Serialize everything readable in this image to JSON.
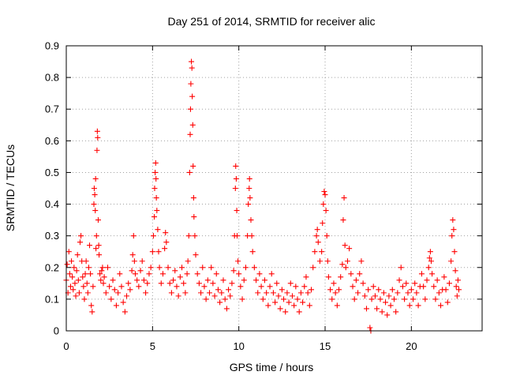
{
  "chart_data": {
    "type": "scatter",
    "title": "Day 251 of 2014, SRMTID for receiver alic",
    "xlabel": "GPS time / hours",
    "ylabel": "SRMTID / TECUs",
    "xlim": [
      0,
      24.1
    ],
    "ylim": [
      0,
      0.9
    ],
    "x_ticks": [
      0,
      5,
      10,
      15,
      20
    ],
    "y_ticks": [
      0,
      0.1,
      0.2,
      0.3,
      0.4,
      0.5,
      0.6,
      0.7,
      0.8,
      0.9
    ],
    "x_tick_labels": [
      "0",
      "5",
      "10",
      "15",
      "20"
    ],
    "y_tick_labels": [
      "0",
      "0.1",
      "0.2",
      "0.3",
      "0.4",
      "0.5",
      "0.6",
      "0.7",
      "0.8",
      "0.9"
    ],
    "grid": true,
    "marker": "+",
    "series": [
      {
        "name": "SRMTID",
        "color": "#ff0000",
        "points": [
          [
            0.0,
            0.16
          ],
          [
            0.05,
            0.21
          ],
          [
            0.1,
            0.12
          ],
          [
            0.15,
            0.25
          ],
          [
            0.2,
            0.18
          ],
          [
            0.25,
            0.14
          ],
          [
            0.3,
            0.22
          ],
          [
            0.35,
            0.17
          ],
          [
            0.4,
            0.13
          ],
          [
            0.45,
            0.2
          ],
          [
            0.5,
            0.15
          ],
          [
            0.55,
            0.11
          ],
          [
            0.6,
            0.19
          ],
          [
            0.65,
            0.24
          ],
          [
            0.7,
            0.16
          ],
          [
            0.75,
            0.12
          ],
          [
            0.8,
            0.28
          ],
          [
            0.85,
            0.3
          ],
          [
            0.9,
            0.22
          ],
          [
            0.95,
            0.17
          ],
          [
            1.0,
            0.14
          ],
          [
            1.05,
            0.1
          ],
          [
            1.1,
            0.18
          ],
          [
            1.15,
            0.22
          ],
          [
            1.2,
            0.15
          ],
          [
            1.25,
            0.12
          ],
          [
            1.3,
            0.2
          ],
          [
            1.35,
            0.27
          ],
          [
            1.4,
            0.18
          ],
          [
            1.45,
            0.08
          ],
          [
            1.5,
            0.06
          ],
          [
            1.55,
            0.14
          ],
          [
            1.6,
            0.4
          ],
          [
            1.62,
            0.45
          ],
          [
            1.65,
            0.43
          ],
          [
            1.68,
            0.38
          ],
          [
            1.7,
            0.48
          ],
          [
            1.72,
            0.26
          ],
          [
            1.75,
            0.3
          ],
          [
            1.78,
            0.57
          ],
          [
            1.8,
            0.63
          ],
          [
            1.82,
            0.61
          ],
          [
            1.85,
            0.35
          ],
          [
            1.88,
            0.27
          ],
          [
            1.9,
            0.24
          ],
          [
            1.95,
            0.18
          ],
          [
            2.0,
            0.16
          ],
          [
            2.05,
            0.19
          ],
          [
            2.1,
            0.2
          ],
          [
            2.15,
            0.15
          ],
          [
            2.2,
            0.17
          ],
          [
            2.3,
            0.12
          ],
          [
            2.4,
            0.2
          ],
          [
            2.5,
            0.14
          ],
          [
            2.6,
            0.1
          ],
          [
            2.7,
            0.16
          ],
          [
            2.8,
            0.13
          ],
          [
            2.9,
            0.08
          ],
          [
            3.0,
            0.12
          ],
          [
            3.1,
            0.18
          ],
          [
            3.2,
            0.14
          ],
          [
            3.3,
            0.09
          ],
          [
            3.4,
            0.06
          ],
          [
            3.5,
            0.11
          ],
          [
            3.6,
            0.15
          ],
          [
            3.7,
            0.13
          ],
          [
            3.8,
            0.19
          ],
          [
            3.85,
            0.24
          ],
          [
            3.9,
            0.3
          ],
          [
            3.95,
            0.22
          ],
          [
            4.0,
            0.18
          ],
          [
            4.1,
            0.16
          ],
          [
            4.2,
            0.14
          ],
          [
            4.3,
            0.19
          ],
          [
            4.4,
            0.22
          ],
          [
            4.5,
            0.16
          ],
          [
            4.6,
            0.12
          ],
          [
            4.7,
            0.15
          ],
          [
            4.8,
            0.18
          ],
          [
            4.9,
            0.2
          ],
          [
            5.0,
            0.25
          ],
          [
            5.05,
            0.3
          ],
          [
            5.1,
            0.36
          ],
          [
            5.12,
            0.45
          ],
          [
            5.15,
            0.5
          ],
          [
            5.18,
            0.53
          ],
          [
            5.2,
            0.48
          ],
          [
            5.22,
            0.42
          ],
          [
            5.25,
            0.38
          ],
          [
            5.3,
            0.32
          ],
          [
            5.35,
            0.25
          ],
          [
            5.4,
            0.2
          ],
          [
            5.5,
            0.15
          ],
          [
            5.6,
            0.18
          ],
          [
            5.7,
            0.26
          ],
          [
            5.75,
            0.31
          ],
          [
            5.8,
            0.28
          ],
          [
            5.9,
            0.2
          ],
          [
            6.0,
            0.15
          ],
          [
            6.1,
            0.12
          ],
          [
            6.2,
            0.16
          ],
          [
            6.3,
            0.19
          ],
          [
            6.4,
            0.14
          ],
          [
            6.5,
            0.11
          ],
          [
            6.6,
            0.17
          ],
          [
            6.7,
            0.2
          ],
          [
            6.8,
            0.15
          ],
          [
            6.9,
            0.12
          ],
          [
            7.0,
            0.18
          ],
          [
            7.05,
            0.22
          ],
          [
            7.1,
            0.3
          ],
          [
            7.15,
            0.5
          ],
          [
            7.18,
            0.62
          ],
          [
            7.2,
            0.7
          ],
          [
            7.22,
            0.78
          ],
          [
            7.25,
            0.85
          ],
          [
            7.28,
            0.83
          ],
          [
            7.3,
            0.74
          ],
          [
            7.33,
            0.65
          ],
          [
            7.35,
            0.52
          ],
          [
            7.38,
            0.42
          ],
          [
            7.4,
            0.36
          ],
          [
            7.45,
            0.3
          ],
          [
            7.5,
            0.24
          ],
          [
            7.6,
            0.18
          ],
          [
            7.7,
            0.15
          ],
          [
            7.8,
            0.12
          ],
          [
            7.9,
            0.2
          ],
          [
            8.0,
            0.14
          ],
          [
            8.1,
            0.1
          ],
          [
            8.2,
            0.16
          ],
          [
            8.3,
            0.12
          ],
          [
            8.4,
            0.2
          ],
          [
            8.5,
            0.15
          ],
          [
            8.6,
            0.11
          ],
          [
            8.7,
            0.18
          ],
          [
            8.8,
            0.13
          ],
          [
            8.9,
            0.09
          ],
          [
            9.0,
            0.12
          ],
          [
            9.1,
            0.16
          ],
          [
            9.2,
            0.1
          ],
          [
            9.3,
            0.07
          ],
          [
            9.4,
            0.13
          ],
          [
            9.5,
            0.11
          ],
          [
            9.6,
            0.15
          ],
          [
            9.7,
            0.19
          ],
          [
            9.75,
            0.3
          ],
          [
            9.8,
            0.45
          ],
          [
            9.82,
            0.52
          ],
          [
            9.85,
            0.48
          ],
          [
            9.88,
            0.38
          ],
          [
            9.9,
            0.3
          ],
          [
            9.95,
            0.22
          ],
          [
            10.0,
            0.18
          ],
          [
            10.1,
            0.14
          ],
          [
            10.2,
            0.1
          ],
          [
            10.3,
            0.16
          ],
          [
            10.4,
            0.2
          ],
          [
            10.5,
            0.3
          ],
          [
            10.55,
            0.4
          ],
          [
            10.6,
            0.45
          ],
          [
            10.62,
            0.48
          ],
          [
            10.65,
            0.42
          ],
          [
            10.7,
            0.35
          ],
          [
            10.75,
            0.3
          ],
          [
            10.8,
            0.25
          ],
          [
            10.9,
            0.2
          ],
          [
            11.0,
            0.16
          ],
          [
            11.1,
            0.12
          ],
          [
            11.2,
            0.18
          ],
          [
            11.3,
            0.14
          ],
          [
            11.4,
            0.1
          ],
          [
            11.5,
            0.16
          ],
          [
            11.6,
            0.12
          ],
          [
            11.7,
            0.08
          ],
          [
            11.8,
            0.14
          ],
          [
            11.9,
            0.18
          ],
          [
            12.0,
            0.12
          ],
          [
            12.1,
            0.09
          ],
          [
            12.2,
            0.15
          ],
          [
            12.3,
            0.11
          ],
          [
            12.4,
            0.07
          ],
          [
            12.5,
            0.13
          ],
          [
            12.6,
            0.1
          ],
          [
            12.7,
            0.06
          ],
          [
            12.8,
            0.12
          ],
          [
            12.9,
            0.09
          ],
          [
            13.0,
            0.15
          ],
          [
            13.1,
            0.11
          ],
          [
            13.2,
            0.08
          ],
          [
            13.3,
            0.14
          ],
          [
            13.4,
            0.1
          ],
          [
            13.5,
            0.06
          ],
          [
            13.6,
            0.12
          ],
          [
            13.7,
            0.09
          ],
          [
            13.8,
            0.14
          ],
          [
            13.9,
            0.17
          ],
          [
            14.0,
            0.12
          ],
          [
            14.1,
            0.08
          ],
          [
            14.2,
            0.13
          ],
          [
            14.3,
            0.2
          ],
          [
            14.4,
            0.25
          ],
          [
            14.5,
            0.3
          ],
          [
            14.55,
            0.32
          ],
          [
            14.6,
            0.28
          ],
          [
            14.7,
            0.22
          ],
          [
            14.8,
            0.25
          ],
          [
            14.85,
            0.34
          ],
          [
            14.9,
            0.4
          ],
          [
            14.95,
            0.44
          ],
          [
            15.0,
            0.43
          ],
          [
            15.05,
            0.38
          ],
          [
            15.1,
            0.3
          ],
          [
            15.15,
            0.22
          ],
          [
            15.2,
            0.17
          ],
          [
            15.3,
            0.13
          ],
          [
            15.4,
            0.1
          ],
          [
            15.5,
            0.15
          ],
          [
            15.6,
            0.12
          ],
          [
            15.7,
            0.08
          ],
          [
            15.8,
            0.13
          ],
          [
            15.9,
            0.17
          ],
          [
            16.0,
            0.21
          ],
          [
            16.05,
            0.35
          ],
          [
            16.1,
            0.42
          ],
          [
            16.15,
            0.27
          ],
          [
            16.2,
            0.2
          ],
          [
            16.3,
            0.22
          ],
          [
            16.4,
            0.26
          ],
          [
            16.5,
            0.18
          ],
          [
            16.6,
            0.14
          ],
          [
            16.7,
            0.1
          ],
          [
            16.8,
            0.16
          ],
          [
            16.9,
            0.12
          ],
          [
            17.0,
            0.18
          ],
          [
            17.1,
            0.22
          ],
          [
            17.2,
            0.15
          ],
          [
            17.3,
            0.11
          ],
          [
            17.4,
            0.07
          ],
          [
            17.5,
            0.13
          ],
          [
            17.6,
            0.01
          ],
          [
            17.65,
            0.0
          ],
          [
            17.7,
            0.1
          ],
          [
            17.8,
            0.14
          ],
          [
            17.9,
            0.11
          ],
          [
            18.0,
            0.07
          ],
          [
            18.1,
            0.13
          ],
          [
            18.2,
            0.1
          ],
          [
            18.3,
            0.06
          ],
          [
            18.4,
            0.12
          ],
          [
            18.5,
            0.09
          ],
          [
            18.6,
            0.05
          ],
          [
            18.7,
            0.11
          ],
          [
            18.8,
            0.08
          ],
          [
            18.9,
            0.13
          ],
          [
            19.0,
            0.1
          ],
          [
            19.1,
            0.06
          ],
          [
            19.2,
            0.12
          ],
          [
            19.3,
            0.16
          ],
          [
            19.4,
            0.2
          ],
          [
            19.5,
            0.14
          ],
          [
            19.6,
            0.1
          ],
          [
            19.7,
            0.15
          ],
          [
            19.8,
            0.12
          ],
          [
            19.9,
            0.08
          ],
          [
            20.0,
            0.13
          ],
          [
            20.1,
            0.1
          ],
          [
            20.2,
            0.15
          ],
          [
            20.3,
            0.12
          ],
          [
            20.4,
            0.08
          ],
          [
            20.5,
            0.14
          ],
          [
            20.6,
            0.18
          ],
          [
            20.7,
            0.14
          ],
          [
            20.8,
            0.1
          ],
          [
            20.9,
            0.16
          ],
          [
            21.0,
            0.2
          ],
          [
            21.05,
            0.23
          ],
          [
            21.1,
            0.25
          ],
          [
            21.15,
            0.22
          ],
          [
            21.2,
            0.18
          ],
          [
            21.3,
            0.14
          ],
          [
            21.4,
            0.1
          ],
          [
            21.5,
            0.16
          ],
          [
            21.6,
            0.12
          ],
          [
            21.7,
            0.08
          ],
          [
            21.8,
            0.13
          ],
          [
            21.9,
            0.17
          ],
          [
            22.0,
            0.13
          ],
          [
            22.1,
            0.09
          ],
          [
            22.2,
            0.15
          ],
          [
            22.3,
            0.22
          ],
          [
            22.35,
            0.3
          ],
          [
            22.4,
            0.35
          ],
          [
            22.45,
            0.32
          ],
          [
            22.5,
            0.25
          ],
          [
            22.55,
            0.19
          ],
          [
            22.6,
            0.14
          ],
          [
            22.65,
            0.11
          ],
          [
            22.7,
            0.16
          ],
          [
            22.75,
            0.13
          ]
        ]
      }
    ]
  }
}
